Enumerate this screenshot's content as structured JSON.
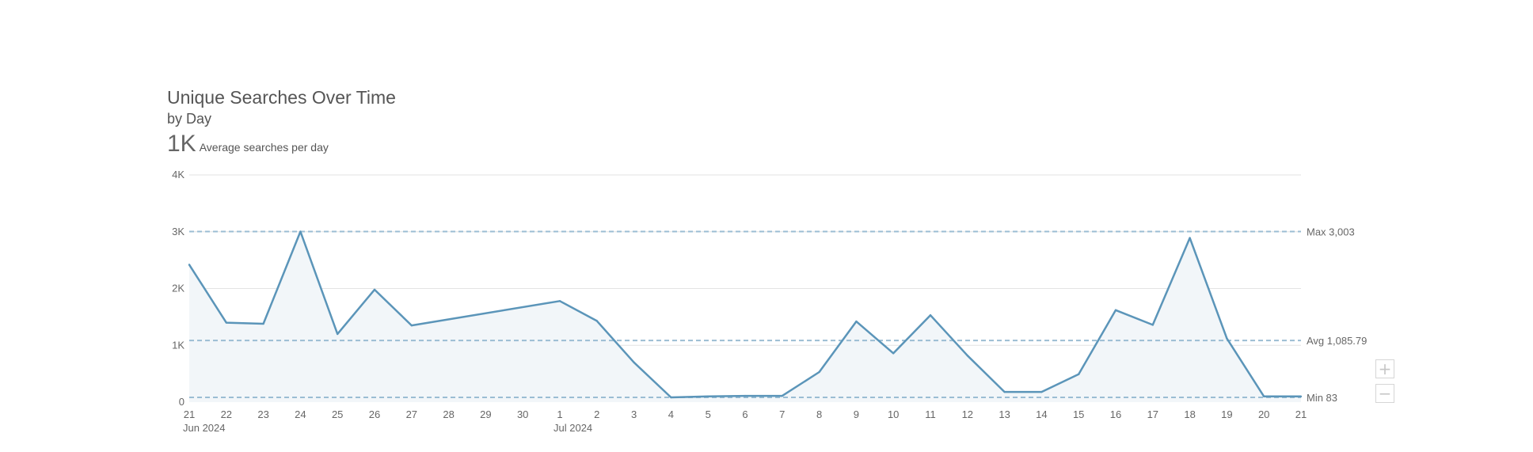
{
  "header": {
    "title": "Unique Searches Over Time",
    "subtitle": "by Day",
    "summary_value": "1K",
    "summary_label": "Average searches per day"
  },
  "zoom": {
    "in_icon": "plus-icon",
    "out_icon": "minus-icon"
  },
  "colors": {
    "line": "#5b95b9",
    "fill": "#f2f6f9",
    "grid": "#e3e3e3",
    "ref": "#9bbdd3",
    "text": "#666666"
  },
  "chart_data": {
    "type": "area",
    "title": "Unique Searches Over Time",
    "subtitle": "by Day",
    "xlabel": "",
    "ylabel": "",
    "ylim": [
      0,
      4000
    ],
    "y_ticks": [
      {
        "value": 0,
        "label": "0"
      },
      {
        "value": 1000,
        "label": "1K"
      },
      {
        "value": 2000,
        "label": "2K"
      },
      {
        "value": 3000,
        "label": "3K"
      },
      {
        "value": 4000,
        "label": "4K"
      }
    ],
    "x_ticks": [
      "21",
      "22",
      "23",
      "24",
      "25",
      "26",
      "27",
      "28",
      "29",
      "30",
      "1",
      "2",
      "3",
      "4",
      "5",
      "6",
      "7",
      "8",
      "9",
      "10",
      "11",
      "12",
      "13",
      "14",
      "15",
      "16",
      "17",
      "18",
      "19",
      "20",
      "21"
    ],
    "x_period_labels": [
      {
        "at": 0,
        "label": "Jun 2024"
      },
      {
        "at": 10,
        "label": "Jul 2024"
      }
    ],
    "points": [
      {
        "x": 0,
        "y": 2420
      },
      {
        "x": 1,
        "y": 1400
      },
      {
        "x": 2,
        "y": 1380
      },
      {
        "x": 3,
        "y": 3003
      },
      {
        "x": 4,
        "y": 1200
      },
      {
        "x": 5,
        "y": 1980
      },
      {
        "x": 6,
        "y": 1350
      },
      {
        "x": 10,
        "y": 1780
      },
      {
        "x": 11,
        "y": 1430
      },
      {
        "x": 12,
        "y": 700
      },
      {
        "x": 13,
        "y": 83
      },
      {
        "x": 14,
        "y": 100
      },
      {
        "x": 15,
        "y": 110
      },
      {
        "x": 16,
        "y": 110
      },
      {
        "x": 17,
        "y": 530
      },
      {
        "x": 18,
        "y": 1420
      },
      {
        "x": 19,
        "y": 860
      },
      {
        "x": 20,
        "y": 1530
      },
      {
        "x": 21,
        "y": 820
      },
      {
        "x": 22,
        "y": 180
      },
      {
        "x": 23,
        "y": 180
      },
      {
        "x": 24,
        "y": 490
      },
      {
        "x": 25,
        "y": 1620
      },
      {
        "x": 26,
        "y": 1360
      },
      {
        "x": 27,
        "y": 2890
      },
      {
        "x": 28,
        "y": 1120
      },
      {
        "x": 29,
        "y": 100
      },
      {
        "x": 30,
        "y": 100
      }
    ],
    "reference_lines": [
      {
        "value": 3003,
        "label": "Max 3,003"
      },
      {
        "value": 1085.79,
        "label": "Avg 1,085.79"
      },
      {
        "value": 83,
        "label": "Min 83"
      }
    ],
    "grid": true,
    "legend": "none"
  }
}
